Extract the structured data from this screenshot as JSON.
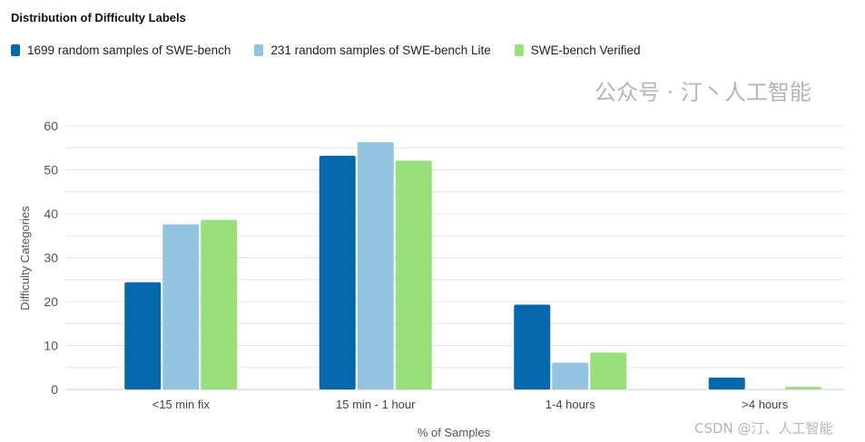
{
  "chart_data": {
    "type": "bar",
    "title": "Distribution of Difficulty Labels",
    "xlabel": "% of Samples",
    "ylabel": "Difficulty Categories",
    "ylim": [
      0,
      60
    ],
    "yticks": [
      0,
      10,
      20,
      30,
      40,
      50,
      60
    ],
    "grid": true,
    "legend_position": "top-left",
    "categories": [
      "<15 min fix",
      "15 min - 1 hour",
      "1-4 hours",
      ">4 hours"
    ],
    "series": [
      {
        "name": "1699 random samples of SWE-bench",
        "color": "#0369ac",
        "values": [
          24.4,
          53.2,
          19.3,
          2.7
        ]
      },
      {
        "name": "231 random samples of SWE-bench Lite",
        "color": "#93c5e2",
        "values": [
          37.6,
          56.3,
          6.1,
          0
        ]
      },
      {
        "name": "SWE-bench Verified",
        "color": "#98e07a",
        "values": [
          38.6,
          52.1,
          8.4,
          0.6
        ]
      }
    ]
  },
  "watermark": {
    "line1": "公众号 · 汀丶人工智能",
    "line2": "CSDN @汀、人工智能"
  }
}
